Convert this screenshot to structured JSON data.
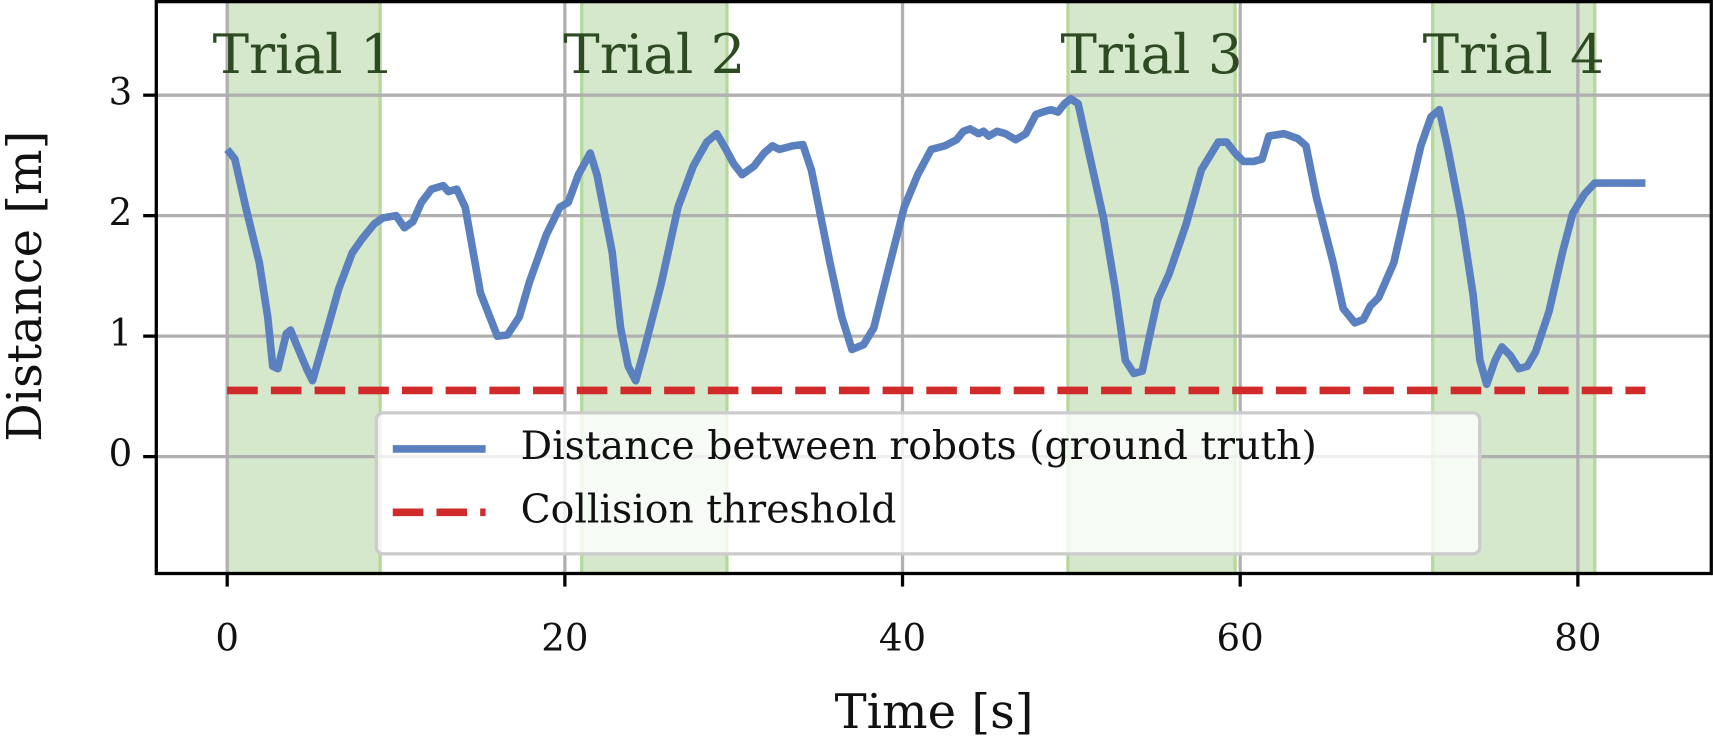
{
  "chart_data": {
    "type": "line",
    "x_label": "Time [s]",
    "y_label": "Distance [m]",
    "xlim": [
      -4.2,
      88.0
    ],
    "ylim": [
      -0.97,
      3.79
    ],
    "xticks": [
      0,
      20,
      40,
      60,
      80
    ],
    "yticks": [
      0,
      1,
      2,
      3
    ],
    "grid": true,
    "legend_position": "lower center",
    "shaded_regions": [
      {
        "label": "Trial 1",
        "start": 0,
        "end": 9.06,
        "color": "#d6e8cb"
      },
      {
        "label": "Trial 2",
        "start": 21.0,
        "end": 29.6,
        "color": "#d6e8cb"
      },
      {
        "label": "Trial 3",
        "start": 49.8,
        "end": 59.7,
        "color": "#d6e8cb"
      },
      {
        "label": "Trial 4",
        "start": 71.4,
        "end": 81.0,
        "color": "#d6e8cb"
      }
    ],
    "series": [
      {
        "name": "Distance between robots (ground truth)",
        "color": "#5b80bf",
        "style": "solid",
        "x": [
          0,
          0.45,
          1.1,
          1.9,
          2.4,
          2.7,
          3.0,
          3.5,
          3.75,
          4.1,
          4.7,
          5.05,
          5.4,
          6.0,
          6.6,
          7.4,
          8.0,
          8.7,
          9.2,
          10.0,
          10.5,
          11.0,
          11.5,
          12.1,
          12.8,
          13.1,
          13.6,
          14.1,
          15.0,
          16.0,
          16.6,
          17.3,
          17.9,
          18.9,
          19.7,
          20.2,
          20.8,
          21.5,
          21.9,
          22.8,
          23.3,
          23.75,
          24.2,
          24.7,
          25.7,
          26.7,
          27.6,
          28.4,
          29.0,
          29.5,
          30.0,
          30.5,
          31.2,
          31.8,
          32.3,
          32.7,
          33.5,
          34.1,
          34.6,
          35.7,
          36.4,
          37.0,
          37.7,
          38.3,
          39.1,
          40.1,
          40.9,
          41.7,
          42.5,
          43.2,
          43.6,
          44.0,
          44.5,
          44.8,
          45.1,
          45.6,
          46.1,
          46.7,
          47.3,
          47.9,
          48.3,
          48.8,
          49.2,
          49.6,
          49.97,
          50.4,
          50.9,
          51.9,
          52.6,
          53.2,
          53.7,
          54.2,
          54.6,
          55.1,
          55.8,
          56.8,
          57.7,
          58.7,
          59.2,
          59.7,
          60.2,
          60.8,
          61.3,
          61.7,
          62.6,
          63.4,
          63.9,
          64.5,
          65.5,
          66.1,
          66.8,
          67.3,
          67.7,
          68.2,
          69.1,
          70.0,
          70.7,
          71.3,
          71.8,
          72.3,
          73.1,
          73.8,
          74.2,
          74.6,
          75.1,
          75.5,
          76.0,
          76.5,
          77.0,
          77.5,
          78.3,
          79.1,
          79.7,
          80.4,
          81.0,
          84.0
        ],
        "values": [
          2.55,
          2.47,
          2.07,
          1.61,
          1.16,
          0.75,
          0.73,
          1.02,
          1.05,
          0.93,
          0.73,
          0.63,
          0.8,
          1.09,
          1.39,
          1.69,
          1.81,
          1.93,
          1.98,
          2.0,
          1.9,
          1.95,
          2.11,
          2.22,
          2.25,
          2.2,
          2.22,
          2.07,
          1.36,
          1.0,
          1.01,
          1.16,
          1.45,
          1.84,
          2.07,
          2.11,
          2.34,
          2.52,
          2.34,
          1.7,
          1.07,
          0.75,
          0.63,
          0.89,
          1.43,
          2.07,
          2.41,
          2.61,
          2.68,
          2.56,
          2.43,
          2.34,
          2.41,
          2.52,
          2.58,
          2.55,
          2.58,
          2.59,
          2.38,
          1.61,
          1.16,
          0.89,
          0.93,
          1.07,
          1.52,
          2.07,
          2.34,
          2.55,
          2.58,
          2.63,
          2.7,
          2.72,
          2.68,
          2.7,
          2.66,
          2.7,
          2.68,
          2.63,
          2.68,
          2.84,
          2.86,
          2.88,
          2.86,
          2.93,
          2.97,
          2.93,
          2.61,
          1.98,
          1.39,
          0.8,
          0.69,
          0.71,
          0.98,
          1.3,
          1.52,
          1.93,
          2.38,
          2.61,
          2.61,
          2.52,
          2.45,
          2.45,
          2.47,
          2.66,
          2.68,
          2.64,
          2.58,
          2.16,
          1.61,
          1.23,
          1.11,
          1.14,
          1.25,
          1.32,
          1.61,
          2.16,
          2.58,
          2.82,
          2.88,
          2.56,
          1.98,
          1.34,
          0.8,
          0.6,
          0.8,
          0.91,
          0.84,
          0.73,
          0.75,
          0.87,
          1.21,
          1.7,
          2.02,
          2.18,
          2.27,
          2.27
        ]
      },
      {
        "name": "Collision threshold",
        "color": "#d02a2a",
        "style": "dashed",
        "x": [
          0,
          84
        ],
        "values": [
          0.55,
          0.55
        ]
      }
    ]
  }
}
